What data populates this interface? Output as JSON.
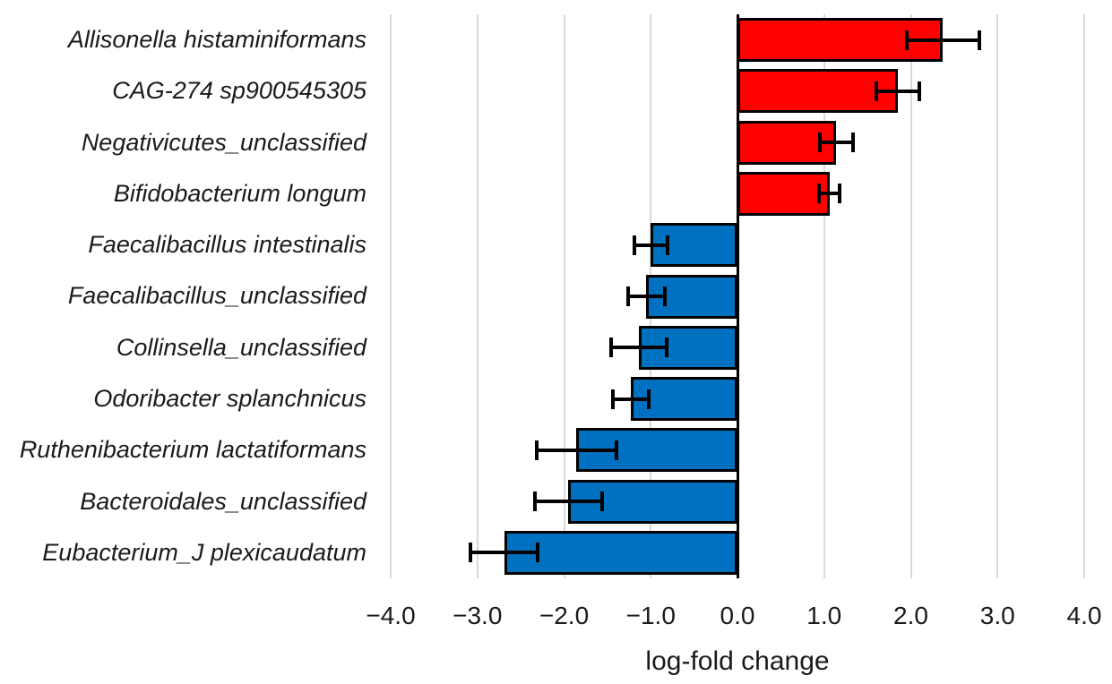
{
  "chart_data": {
    "type": "bar",
    "orientation": "horizontal",
    "title": "",
    "xlabel": "log-fold change",
    "ylabel": "",
    "categories": [
      "Allisonella histaminiformans",
      "CAG-274 sp900545305",
      "Negativicutes_unclassified",
      "Bifidobacterium longum",
      "Faecalibacillus intestinalis",
      "Faecalibacillus_unclassified",
      "Collinsella_unclassified",
      "Odoribacter splanchnicus",
      "Ruthenibacterium lactatiformans",
      "Bacteroidales_unclassified",
      "Eubacterium_J plexicaudatum"
    ],
    "values": [
      2.37,
      1.85,
      1.14,
      1.06,
      -1.0,
      -1.05,
      -1.14,
      -1.23,
      -1.86,
      -1.95,
      -2.69
    ],
    "errors": [
      0.42,
      0.25,
      0.19,
      0.12,
      0.19,
      0.21,
      0.32,
      0.21,
      0.46,
      0.39,
      0.39
    ],
    "xlim": [
      -4,
      4
    ],
    "x_tick_values": [
      -4,
      -3,
      -2,
      -1,
      0,
      1,
      2,
      3,
      4
    ],
    "x_tick_labels": [
      "−4.0",
      "−3.0",
      "−2.0",
      "−1.0",
      "0.0",
      "1.0",
      "2.0",
      "3.0",
      "4.0"
    ],
    "grid": true,
    "legend": "none",
    "colors": {
      "positive_bar": "#ff0000",
      "negative_bar": "#0070c0",
      "bar_border": "#000000",
      "error_bar": "#000000",
      "gridline": "#d9d9d9",
      "zero_line": "#000000",
      "text": "#1a1a1a"
    }
  }
}
